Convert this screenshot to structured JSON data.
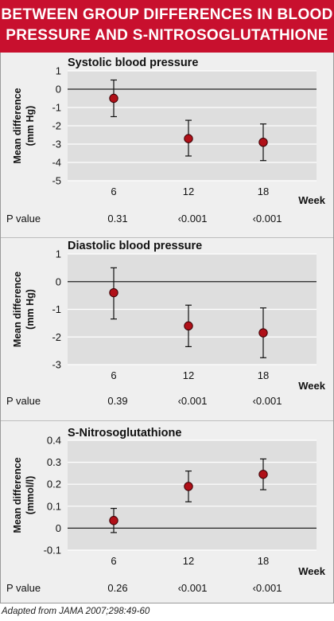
{
  "header": {
    "title_line1": "BETWEEN GROUP DIFFERENCES IN BLOOD",
    "title_line2": "PRESSURE AND S-NITROSOGLUTATHIONE"
  },
  "source": "Adapted from JAMA 2007;298:49-60",
  "colors": {
    "banner": "#c8102e",
    "panel": "#dedede",
    "marker": "#b01018",
    "frame": "#efefef"
  },
  "chart_data": [
    {
      "type": "scatter",
      "title": "Systolic blood pressure",
      "ylabel": "Mean difference (mm Hg)",
      "xlabel": "Week",
      "ylim": [
        -5,
        1
      ],
      "yticks": [
        "1",
        "0",
        "-1",
        "-2",
        "-3",
        "-4",
        "-5"
      ],
      "categories": [
        "6",
        "12",
        "18"
      ],
      "values": [
        -0.5,
        -2.7,
        -2.9
      ],
      "ci_low": [
        -1.5,
        -3.65,
        -3.9
      ],
      "ci_high": [
        0.5,
        -1.7,
        -1.9
      ],
      "pvalue_label": "P value",
      "pvalues": [
        "0.31",
        "‹0.001",
        "‹0.001"
      ],
      "grid": true
    },
    {
      "type": "scatter",
      "title": "Diastolic blood pressure",
      "ylabel": "Mean difference (mm Hg)",
      "xlabel": "Week",
      "ylim": [
        -3,
        1
      ],
      "yticks": [
        "1",
        "0",
        "-1",
        "-2",
        "-3"
      ],
      "categories": [
        "6",
        "12",
        "18"
      ],
      "values": [
        -0.4,
        -1.6,
        -1.85
      ],
      "ci_low": [
        -1.35,
        -2.35,
        -2.75
      ],
      "ci_high": [
        0.5,
        -0.85,
        -0.95
      ],
      "pvalue_label": "P value",
      "pvalues": [
        "0.39",
        "‹0.001",
        "‹0.001"
      ],
      "grid": true
    },
    {
      "type": "scatter",
      "title": "S-Nitrosoglutathione",
      "ylabel": "Mean difference (mmol/l)",
      "xlabel": "Week",
      "ylim": [
        -0.1,
        0.4
      ],
      "yticks": [
        "0.4",
        "0.3",
        "0.2",
        "0.1",
        "0",
        "-0.1"
      ],
      "categories": [
        "6",
        "12",
        "18"
      ],
      "values": [
        0.035,
        0.19,
        0.245
      ],
      "ci_low": [
        -0.02,
        0.12,
        0.175
      ],
      "ci_high": [
        0.09,
        0.26,
        0.315
      ],
      "pvalue_label": "P value",
      "pvalues": [
        "0.26",
        "‹0.001",
        "‹0.001"
      ],
      "grid": true
    }
  ]
}
